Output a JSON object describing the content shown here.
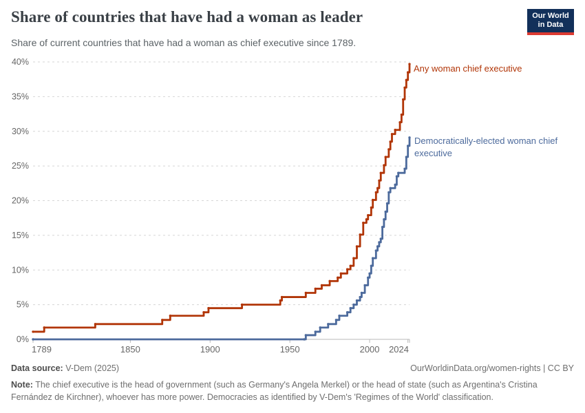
{
  "header": {
    "title": "Share of countries that have had a woman as leader",
    "subtitle": "Share of current countries that have had a woman as chief executive since 1789.",
    "logo": {
      "line1": "Our World",
      "line2": "in Data"
    }
  },
  "chart_data": {
    "type": "line",
    "step": true,
    "title": "Share of countries that have had a woman as leader",
    "xlabel": "",
    "ylabel": "",
    "xlim": [
      1789,
      2025
    ],
    "ylim": [
      0,
      40
    ],
    "x_ticks": [
      1789,
      1850,
      1900,
      1950,
      2000,
      2024
    ],
    "y_ticks": [
      0,
      5,
      10,
      15,
      20,
      25,
      30,
      35,
      40
    ],
    "y_tick_suffix": "%",
    "grid": "dashed-horizontal",
    "legend_position": "end-of-line labels",
    "colors": {
      "axis": "#b8b8b8",
      "grid": "#d5d5d5",
      "tick_text": "#666666"
    },
    "series": [
      {
        "name": "Any woman chief executive",
        "color": "#b13507",
        "points": [
          [
            1789,
            1.1
          ],
          [
            1796,
            1.7
          ],
          [
            1828,
            2.2
          ],
          [
            1870,
            2.8
          ],
          [
            1875,
            3.4
          ],
          [
            1896,
            3.9
          ],
          [
            1899,
            4.5
          ],
          [
            1920,
            5.0
          ],
          [
            1944,
            5.6
          ],
          [
            1945,
            6.1
          ],
          [
            1960,
            6.7
          ],
          [
            1966,
            7.3
          ],
          [
            1970,
            7.8
          ],
          [
            1975,
            8.4
          ],
          [
            1980,
            8.9
          ],
          [
            1982,
            9.5
          ],
          [
            1986,
            10.1
          ],
          [
            1988,
            10.6
          ],
          [
            1990,
            11.7
          ],
          [
            1992,
            13.4
          ],
          [
            1994,
            15.1
          ],
          [
            1996,
            16.8
          ],
          [
            1998,
            17.3
          ],
          [
            1999,
            17.9
          ],
          [
            2001,
            19.0
          ],
          [
            2002,
            20.1
          ],
          [
            2004,
            21.2
          ],
          [
            2005,
            21.8
          ],
          [
            2006,
            22.9
          ],
          [
            2007,
            24.0
          ],
          [
            2009,
            25.1
          ],
          [
            2010,
            26.3
          ],
          [
            2012,
            27.4
          ],
          [
            2013,
            28.5
          ],
          [
            2014,
            29.6
          ],
          [
            2016,
            30.2
          ],
          [
            2019,
            31.3
          ],
          [
            2020,
            32.4
          ],
          [
            2021,
            34.6
          ],
          [
            2022,
            36.3
          ],
          [
            2023,
            37.4
          ],
          [
            2024,
            38.5
          ],
          [
            2025,
            39.7
          ]
        ]
      },
      {
        "name": "Democratically-elected woman chief executive",
        "color": "#4c6a9c",
        "points": [
          [
            1789,
            0
          ],
          [
            1959,
            0
          ],
          [
            1960,
            0.6
          ],
          [
            1966,
            1.1
          ],
          [
            1969,
            1.7
          ],
          [
            1974,
            2.2
          ],
          [
            1979,
            2.8
          ],
          [
            1981,
            3.4
          ],
          [
            1986,
            3.9
          ],
          [
            1988,
            4.5
          ],
          [
            1990,
            5.0
          ],
          [
            1992,
            5.6
          ],
          [
            1994,
            6.1
          ],
          [
            1995,
            6.7
          ],
          [
            1997,
            7.8
          ],
          [
            1999,
            8.9
          ],
          [
            2000,
            9.5
          ],
          [
            2001,
            10.6
          ],
          [
            2002,
            11.7
          ],
          [
            2004,
            12.8
          ],
          [
            2005,
            13.4
          ],
          [
            2006,
            14.0
          ],
          [
            2007,
            14.5
          ],
          [
            2008,
            16.2
          ],
          [
            2009,
            17.3
          ],
          [
            2010,
            18.4
          ],
          [
            2011,
            19.6
          ],
          [
            2012,
            21.2
          ],
          [
            2013,
            21.8
          ],
          [
            2016,
            22.3
          ],
          [
            2017,
            23.5
          ],
          [
            2018,
            24.0
          ],
          [
            2022,
            24.6
          ],
          [
            2023,
            26.3
          ],
          [
            2024,
            27.9
          ],
          [
            2025,
            29.1
          ]
        ]
      }
    ]
  },
  "footer": {
    "source_label": "Data source:",
    "source_value": "V-Dem (2025)",
    "link": "OurWorldinData.org/women-rights | CC BY",
    "note_label": "Note:",
    "note_text": "The chief executive is the head of government (such as Germany's Angela Merkel) or the head of state (such as Argentina's Cristina Fernández de Kirchner), whoever has more power. Democracies as identified by V-Dem's 'Regimes of the World' classification."
  }
}
